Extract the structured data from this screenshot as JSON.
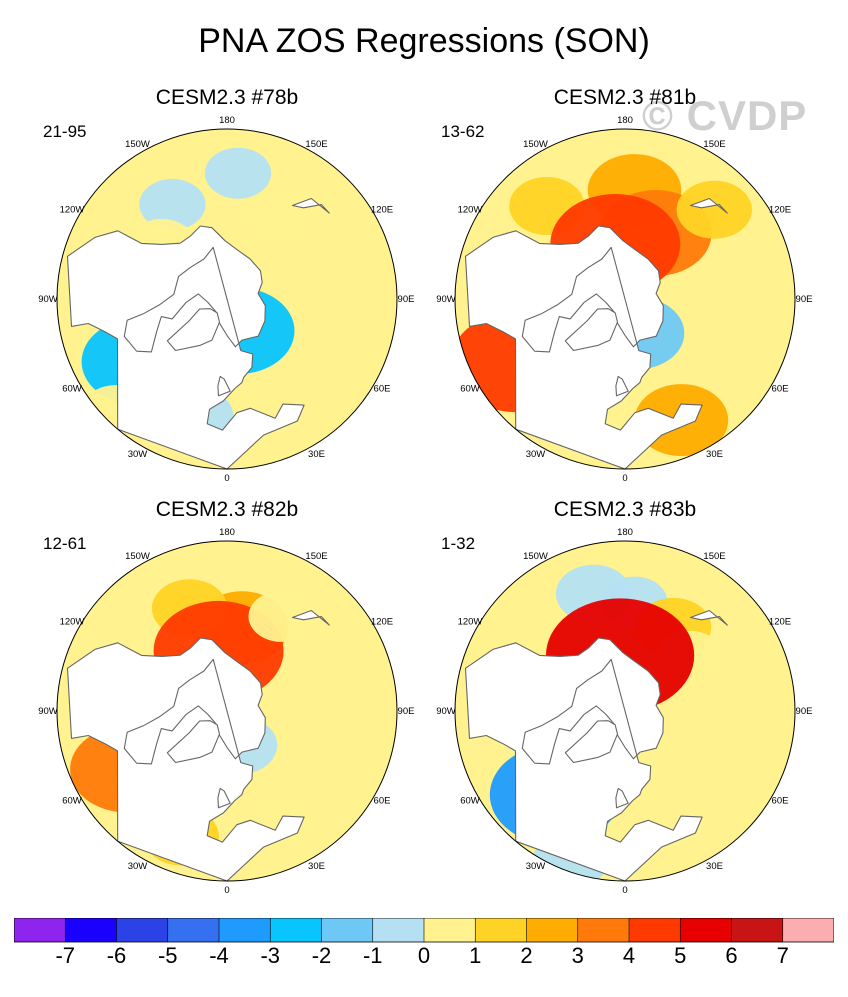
{
  "title": "PNA ZOS Regressions (SON)",
  "watermark": "© CVDP",
  "longitude_labels": [
    "180",
    "150E",
    "120E",
    "90E",
    "60E",
    "30E",
    "0",
    "30W",
    "60W",
    "90W",
    "120W",
    "150W"
  ],
  "colorbar": {
    "colors": [
      "#8f24ee",
      "#1a00ff",
      "#2b43e6",
      "#3470f0",
      "#1f9bff",
      "#08c4ff",
      "#6ec8f5",
      "#b5e0f4",
      "#fff28f",
      "#ffd325",
      "#ffac00",
      "#ff7a0a",
      "#ff3a00",
      "#e60000",
      "#c81414",
      "#fbadb0"
    ],
    "labels": [
      "-7",
      "-6",
      "-5",
      "-4",
      "-3",
      "-2",
      "-1",
      "0",
      "1",
      "2",
      "3",
      "4",
      "5",
      "6",
      "7"
    ]
  },
  "chart_data": [
    {
      "type": "heatmap",
      "projection": "north-polar-stereographic",
      "title": "CESM2.3 #78b",
      "years": "21-95",
      "variable": "ZOS regression on PNA",
      "season": "SON",
      "blobs": [
        {
          "lon": 150,
          "lat": 50,
          "level": 0.5
        },
        {
          "lon": -150,
          "lat": 45,
          "level": -0.5
        },
        {
          "lon": -130,
          "lat": 55,
          "level": 0.5
        },
        {
          "lon": 175,
          "lat": 38,
          "level": -0.5
        },
        {
          "lon": 20,
          "lat": 76,
          "level": -3
        },
        {
          "lon": -70,
          "lat": 76,
          "level": -1
        },
        {
          "lon": -45,
          "lat": 60,
          "level": -1
        },
        {
          "lon": -55,
          "lat": 45,
          "level": -3
        },
        {
          "lon": -45,
          "lat": 25,
          "level": 0.5
        },
        {
          "lon": -15,
          "lat": 40,
          "level": -1
        }
      ]
    },
    {
      "type": "heatmap",
      "projection": "north-polar-stereographic",
      "title": "CESM2.3 #81b",
      "years": "13-62",
      "variable": "ZOS regression on PNA",
      "season": "SON",
      "blobs": [
        {
          "lon": 175,
          "lat": 45,
          "level": 2
        },
        {
          "lon": 155,
          "lat": 60,
          "level": 3
        },
        {
          "lon": -140,
          "lat": 40,
          "level": 1
        },
        {
          "lon": 135,
          "lat": 38,
          "level": 1
        },
        {
          "lon": -170,
          "lat": 67,
          "level": 4
        },
        {
          "lon": 20,
          "lat": 75,
          "level": -2
        },
        {
          "lon": -50,
          "lat": 62,
          "level": -2
        },
        {
          "lon": -60,
          "lat": 38,
          "level": 4
        },
        {
          "lon": -30,
          "lat": 38,
          "level": 1
        },
        {
          "lon": 25,
          "lat": 35,
          "level": 2
        }
      ]
    },
    {
      "type": "heatmap",
      "projection": "north-polar-stereographic",
      "title": "CESM2.3 #82b",
      "years": "12-61",
      "variable": "ZOS regression on PNA",
      "season": "SON",
      "blobs": [
        {
          "lon": 170,
          "lat": 55,
          "level": 2
        },
        {
          "lon": -160,
          "lat": 45,
          "level": 1
        },
        {
          "lon": -172,
          "lat": 65,
          "level": 4
        },
        {
          "lon": 150,
          "lat": 45,
          "level": 0.5
        },
        {
          "lon": 20,
          "lat": 75,
          "level": -1
        },
        {
          "lon": -60,
          "lat": 42,
          "level": 3
        },
        {
          "lon": -45,
          "lat": 55,
          "level": -2
        },
        {
          "lon": -20,
          "lat": 35,
          "level": 1
        },
        {
          "lon": 25,
          "lat": 38,
          "level": 0.5
        }
      ]
    },
    {
      "type": "heatmap",
      "projection": "north-polar-stereographic",
      "title": "CESM2.3 #83b",
      "years": "1-32",
      "variable": "ZOS regression on PNA",
      "season": "SON",
      "blobs": [
        {
          "lon": -165,
          "lat": 40,
          "level": -1
        },
        {
          "lon": 175,
          "lat": 45,
          "level": -0.5
        },
        {
          "lon": 150,
          "lat": 50,
          "level": 1
        },
        {
          "lon": 130,
          "lat": 55,
          "level": 0.5
        },
        {
          "lon": -175,
          "lat": 67,
          "level": 5
        },
        {
          "lon": 20,
          "lat": 76,
          "level": 0.5
        },
        {
          "lon": -40,
          "lat": 45,
          "level": -4
        },
        {
          "lon": -55,
          "lat": 60,
          "level": -1
        },
        {
          "lon": -20,
          "lat": 55,
          "level": 1
        },
        {
          "lon": -20,
          "lat": 25,
          "level": -1
        }
      ]
    }
  ]
}
